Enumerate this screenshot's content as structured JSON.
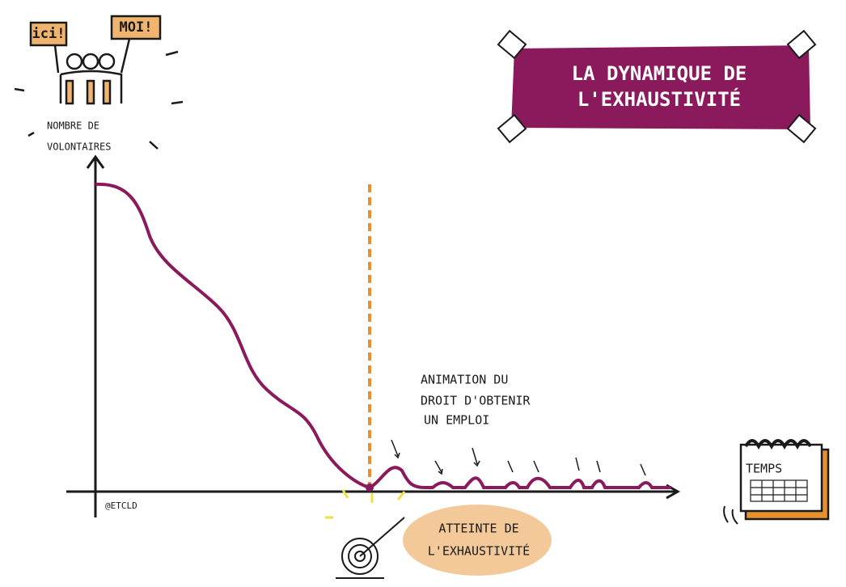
{
  "signs": [
    "ici!",
    "MOI!"
  ],
  "y_axis_label": [
    "NOMBRE DE",
    "VOLONTAIRES"
  ],
  "title": [
    "LA DYNAMIQUE DE",
    "L'EXHAUSTIVITÉ"
  ],
  "annotation": [
    "ANIMATION DU",
    "DROIT D'OBTENIR",
    "UN EMPLOI"
  ],
  "credit": "@ETCLD",
  "milestone": [
    "ATTEINTE DE",
    "L'EXHAUSTIVITÉ"
  ],
  "x_axis_label": "TEMPS"
}
